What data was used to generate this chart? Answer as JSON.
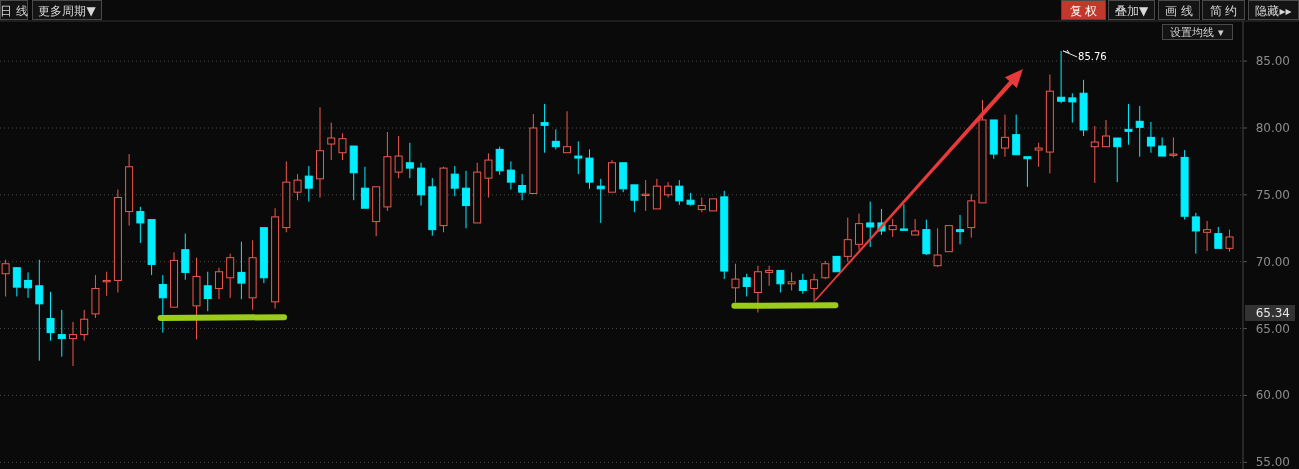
{
  "chart_data": {
    "type": "candlestick",
    "categories": [
      null,
      null,
      null,
      null,
      null,
      null,
      null,
      null,
      null,
      null,
      null,
      null,
      null,
      null,
      null,
      null,
      null,
      null,
      null,
      null,
      null,
      null,
      null,
      null,
      null,
      null,
      null,
      null,
      null,
      null,
      null,
      null,
      null,
      null,
      null,
      null,
      null,
      null,
      null,
      null,
      null,
      null,
      null,
      null,
      null,
      null,
      null,
      null,
      null,
      null,
      null,
      null,
      null,
      null,
      null,
      null,
      null,
      null,
      null,
      null,
      null,
      null,
      null,
      null,
      null,
      null,
      null,
      null,
      null,
      null,
      null,
      null,
      null,
      null,
      null,
      null,
      null,
      null,
      null,
      null,
      null,
      null,
      null,
      null,
      null,
      null,
      null,
      null,
      null,
      null,
      null,
      null,
      null,
      null,
      null,
      null,
      null,
      null,
      null,
      null,
      null,
      null,
      null,
      null,
      null,
      null,
      null,
      null,
      null,
      null
    ],
    "ohlc": [
      [
        69.1,
        70.15,
        67.4,
        69.85
      ],
      [
        69.55,
        69.6,
        67.4,
        68.1
      ],
      [
        68.6,
        69.2,
        67.3,
        68.05
      ],
      [
        68.2,
        70.15,
        62.6,
        66.85
      ],
      [
        65.75,
        67.75,
        64.1,
        64.7
      ],
      [
        64.55,
        66.4,
        62.9,
        64.25
      ],
      [
        64.25,
        65.5,
        62.2,
        64.55
      ],
      [
        64.55,
        66.4,
        64.1,
        65.7
      ],
      [
        66.1,
        69.0,
        65.8,
        68.0
      ],
      [
        68.5,
        69.25,
        67.45,
        68.6
      ],
      [
        68.6,
        75.4,
        67.7,
        74.8
      ],
      [
        73.75,
        78.05,
        72.7,
        77.1
      ],
      [
        73.75,
        74.1,
        71.4,
        72.9
      ],
      [
        73.15,
        73.15,
        69.0,
        69.8
      ],
      [
        68.3,
        69.0,
        64.7,
        67.3
      ],
      [
        66.6,
        70.7,
        66.6,
        70.1
      ],
      [
        70.9,
        72.1,
        68.65,
        69.2
      ],
      [
        66.7,
        70.3,
        64.2,
        68.9
      ],
      [
        68.2,
        69.25,
        66.3,
        67.25
      ],
      [
        68.0,
        69.55,
        67.2,
        69.25
      ],
      [
        68.8,
        70.6,
        67.3,
        70.3
      ],
      [
        69.2,
        71.5,
        67.2,
        68.4
      ],
      [
        67.3,
        71.6,
        66.4,
        70.3
      ],
      [
        72.55,
        72.55,
        68.4,
        68.8
      ],
      [
        67.0,
        74.0,
        66.5,
        73.35
      ],
      [
        72.55,
        77.5,
        72.2,
        75.95
      ],
      [
        75.2,
        76.55,
        74.6,
        76.1
      ],
      [
        76.4,
        77.15,
        74.5,
        75.5
      ],
      [
        76.2,
        81.55,
        74.8,
        78.3
      ],
      [
        78.8,
        80.4,
        77.6,
        79.25
      ],
      [
        78.15,
        79.6,
        77.6,
        79.2
      ],
      [
        78.65,
        78.65,
        74.6,
        76.65
      ],
      [
        75.5,
        77.1,
        74.0,
        74.0
      ],
      [
        73.0,
        75.6,
        71.9,
        75.6
      ],
      [
        74.1,
        79.7,
        73.8,
        77.85
      ],
      [
        76.7,
        79.4,
        76.25,
        77.9
      ],
      [
        77.4,
        78.9,
        76.25,
        77.0
      ],
      [
        77.0,
        77.4,
        74.2,
        75.0
      ],
      [
        75.6,
        76.25,
        71.95,
        72.4
      ],
      [
        72.7,
        77.1,
        72.2,
        77.0
      ],
      [
        76.55,
        77.15,
        74.9,
        75.5
      ],
      [
        75.5,
        76.8,
        72.5,
        74.2
      ],
      [
        72.9,
        77.4,
        72.9,
        76.7
      ],
      [
        76.25,
        78.1,
        74.8,
        77.6
      ],
      [
        78.4,
        78.6,
        76.5,
        76.8
      ],
      [
        76.85,
        77.5,
        75.4,
        75.95
      ],
      [
        75.7,
        76.55,
        74.6,
        75.2
      ],
      [
        75.1,
        81.05,
        75.1,
        80.0
      ],
      [
        80.4,
        81.8,
        78.15,
        80.2
      ],
      [
        79.0,
        79.9,
        78.4,
        78.6
      ],
      [
        78.15,
        81.25,
        78.15,
        78.6
      ],
      [
        77.9,
        79.0,
        76.55,
        77.75
      ],
      [
        77.75,
        78.4,
        75.45,
        75.95
      ],
      [
        75.65,
        76.2,
        72.9,
        75.45
      ],
      [
        75.2,
        77.6,
        75.2,
        77.4
      ],
      [
        77.4,
        77.4,
        75.2,
        75.45
      ],
      [
        75.75,
        75.75,
        73.7,
        74.6
      ],
      [
        74.95,
        76.1,
        73.8,
        75.05
      ],
      [
        73.95,
        76.2,
        73.95,
        75.65
      ],
      [
        75.0,
        75.95,
        74.8,
        75.65
      ],
      [
        75.65,
        76.1,
        74.25,
        74.55
      ],
      [
        74.6,
        75.15,
        74.2,
        74.3
      ],
      [
        73.9,
        74.8,
        73.7,
        74.2
      ],
      [
        73.8,
        74.7,
        73.8,
        74.7
      ],
      [
        74.85,
        75.3,
        68.7,
        69.3
      ],
      [
        68.05,
        69.85,
        66.95,
        68.7
      ],
      [
        68.8,
        69.1,
        67.4,
        68.15
      ],
      [
        67.7,
        69.7,
        66.2,
        69.25
      ],
      [
        69.2,
        69.7,
        68.2,
        69.35
      ],
      [
        69.35,
        69.35,
        67.7,
        68.35
      ],
      [
        68.35,
        69.2,
        67.85,
        68.5
      ],
      [
        68.6,
        69.1,
        67.6,
        67.85
      ],
      [
        68.0,
        69.1,
        67.0,
        68.65
      ],
      [
        68.8,
        70.05,
        68.7,
        69.85
      ],
      [
        70.4,
        70.4,
        69.25,
        69.25
      ],
      [
        70.4,
        73.3,
        70.0,
        71.65
      ],
      [
        71.3,
        73.6,
        70.9,
        72.85
      ],
      [
        72.9,
        74.5,
        71.1,
        72.6
      ],
      [
        72.9,
        73.95,
        72.0,
        72.3
      ],
      [
        72.4,
        73.2,
        71.85,
        72.7
      ],
      [
        72.45,
        74.3,
        72.3,
        72.35
      ],
      [
        72.0,
        73.2,
        72.0,
        72.3
      ],
      [
        72.4,
        73.15,
        70.5,
        70.6
      ],
      [
        69.7,
        72.5,
        69.6,
        70.5
      ],
      [
        70.75,
        72.7,
        70.75,
        72.7
      ],
      [
        72.4,
        73.5,
        71.3,
        72.25
      ],
      [
        72.55,
        75.05,
        71.8,
        74.55
      ],
      [
        74.4,
        82.1,
        74.4,
        80.6
      ],
      [
        80.6,
        80.6,
        77.7,
        78.05
      ],
      [
        78.5,
        81.0,
        77.85,
        79.3
      ],
      [
        79.5,
        81.0,
        78.0,
        78.0
      ],
      [
        77.85,
        77.85,
        75.6,
        77.7
      ],
      [
        78.35,
        78.9,
        77.1,
        78.5
      ],
      [
        78.2,
        84.0,
        76.6,
        82.75
      ],
      [
        82.3,
        85.76,
        81.85,
        82.0
      ],
      [
        82.25,
        82.6,
        80.4,
        81.95
      ],
      [
        82.6,
        83.6,
        79.4,
        79.85
      ],
      [
        78.6,
        80.15,
        75.9,
        78.95
      ],
      [
        78.6,
        80.6,
        78.6,
        79.4
      ],
      [
        79.25,
        79.25,
        75.95,
        78.6
      ],
      [
        79.9,
        81.8,
        78.75,
        79.75
      ],
      [
        80.5,
        81.65,
        77.85,
        80.05
      ],
      [
        79.3,
        80.45,
        78.15,
        78.65
      ],
      [
        78.65,
        79.3,
        77.9,
        77.9
      ],
      [
        77.95,
        79.3,
        77.8,
        78.05
      ],
      [
        77.8,
        78.35,
        73.15,
        73.4
      ],
      [
        73.35,
        73.65,
        70.6,
        72.3
      ],
      [
        72.2,
        73.05,
        70.8,
        72.4
      ],
      [
        72.1,
        72.6,
        71.0,
        71.0
      ],
      [
        71.0,
        72.4,
        70.75,
        71.85
      ]
    ],
    "colors": [
      "#f05a4e",
      "#00eeff",
      "#00eeff",
      "#00eeff",
      "#00eeff",
      "#00eeff",
      "#f05a4e",
      "#f05a4e",
      "#f05a4e",
      "#f05a4e",
      "#f05a4e",
      "#f05a4e",
      "#00eeff",
      "#00eeff",
      "#00eeff",
      "#f05a4e",
      "#00eeff",
      "#f05a4e",
      "#00eeff",
      "#f05a4e",
      "#f05a4e",
      "#00eeff",
      "#f05a4e",
      "#00eeff",
      "#f05a4e",
      "#f05a4e",
      "#f05a4e",
      "#00eeff",
      "#f05a4e",
      "#f05a4e",
      "#f05a4e",
      "#00eeff",
      "#00eeff",
      "#f05a4e",
      "#f05a4e",
      "#f05a4e",
      "#00eeff",
      "#00eeff",
      "#00eeff",
      "#f05a4e",
      "#00eeff",
      "#00eeff",
      "#f05a4e",
      "#f05a4e",
      "#00eeff",
      "#00eeff",
      "#00eeff",
      "#f05a4e",
      "#00eeff",
      "#00eeff",
      "#f05a4e",
      "#00eeff",
      "#00eeff",
      "#00eeff",
      "#f05a4e",
      "#00eeff",
      "#00eeff",
      "#f05a4e",
      "#f05a4e",
      "#f05a4e",
      "#00eeff",
      "#00eeff",
      "#f05a4e",
      "#f05a4e",
      "#00eeff",
      "#f05a4e",
      "#00eeff",
      "#f05a4e",
      "#f05a4e",
      "#00eeff",
      "#f05a4e",
      "#00eeff",
      "#f05a4e",
      "#f05a4e",
      "#00eeff",
      "#f05a4e",
      "#f05a4e",
      "#00eeff",
      "#00eeff",
      "#f05a4e",
      "#00eeff",
      "#f05a4e",
      "#00eeff",
      "#f05a4e",
      "#f05a4e",
      "#00eeff",
      "#f05a4e",
      "#f05a4e",
      "#00eeff",
      "#f05a4e",
      "#00eeff",
      "#00eeff",
      "#f05a4e",
      "#f05a4e",
      "#00eeff",
      "#00eeff",
      "#00eeff",
      "#f05a4e",
      "#f05a4e",
      "#00eeff",
      "#00eeff",
      "#00eeff",
      "#00eeff",
      "#00eeff",
      "#f05a4e",
      "#00eeff",
      "#00eeff",
      "#f05a4e",
      "#00eeff",
      "#f05a4e"
    ],
    "ylim": [
      54.5,
      88
    ],
    "yticks": [
      {
        "value": 55,
        "label": "55.00"
      },
      {
        "value": 60,
        "label": "60.00"
      },
      {
        "value": 65,
        "label": "65.00"
      },
      {
        "value": 70,
        "label": "70.00"
      },
      {
        "value": 75,
        "label": "75.00"
      },
      {
        "value": 80,
        "label": "80.00"
      },
      {
        "value": 85,
        "label": "85.00"
      }
    ],
    "grid": "y",
    "annotations": [
      "日 线",
      "更多周期▼",
      "复 权",
      "叠加▼",
      "画 线",
      "简 约",
      "隐藏▸▸",
      "设置均线 ▾",
      "85.76",
      "65.34"
    ]
  }
}
